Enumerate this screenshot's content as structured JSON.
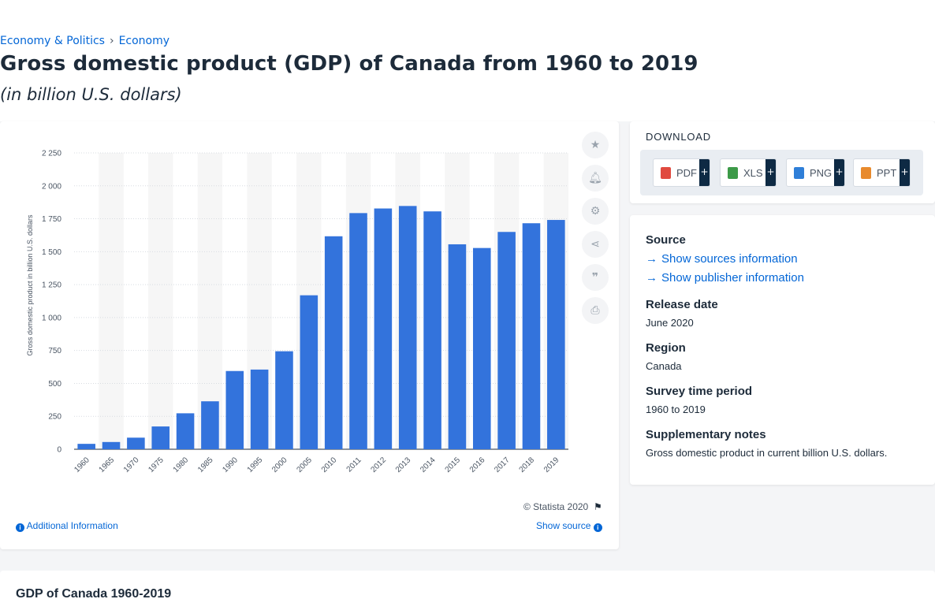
{
  "breadcrumb": {
    "item1": "Economy & Politics",
    "separator": "›",
    "item2": "Economy"
  },
  "title": "Gross domestic product (GDP) of Canada from 1960 to 2019",
  "subtitle": "(in billion U.S. dollars)",
  "chart_footer": {
    "copyright": "© Statista 2020",
    "additional_info": "Additional Information",
    "show_source": "Show source"
  },
  "tools": [
    "star-icon",
    "bell-icon",
    "gear-icon",
    "share-icon",
    "quote-icon",
    "print-icon"
  ],
  "download": {
    "title": "DOWNLOAD",
    "buttons": [
      {
        "label": "PDF",
        "icon": "pdf-icon",
        "color": "#e04a3f"
      },
      {
        "label": "XLS",
        "icon": "xls-icon",
        "color": "#3c9a48"
      },
      {
        "label": "PNG",
        "icon": "png-icon",
        "color": "#2f7fd8"
      },
      {
        "label": "PPT",
        "icon": "ppt-icon",
        "color": "#e88a2d"
      }
    ],
    "plus": "+"
  },
  "meta": {
    "source_heading": "Source",
    "show_sources": "Show sources information",
    "show_publisher": "Show publisher information",
    "release_heading": "Release date",
    "release_value": "June 2020",
    "region_heading": "Region",
    "region_value": "Canada",
    "survey_heading": "Survey time period",
    "survey_value": "1960 to 2019",
    "notes_heading": "Supplementary notes",
    "notes_value": "Gross domestic product in current billion U.S. dollars."
  },
  "bottom": {
    "title": "GDP of Canada 1960-2019"
  },
  "colors": {
    "bar": "#3373dc",
    "link": "#0366d6",
    "band": "#f6f6f6"
  },
  "chart_data": {
    "type": "bar",
    "ylabel": "Gross domestic product in billion U.S. dollars",
    "ylim": [
      0,
      2250
    ],
    "yticks": [
      0,
      250,
      500,
      750,
      1000,
      1250,
      1500,
      1750,
      2000,
      2250
    ],
    "ytick_labels": [
      "0",
      "250",
      "500",
      "750",
      "1 000",
      "1 250",
      "1 500",
      "1 750",
      "2 000",
      "2 250"
    ],
    "categories": [
      "1960",
      "1965",
      "1970",
      "1975",
      "1980",
      "1985",
      "1990",
      "1995",
      "2000",
      "2005",
      "2010",
      "2011",
      "2012",
      "2013",
      "2014",
      "2015",
      "2016",
      "2017",
      "2018",
      "2019"
    ],
    "values": [
      41,
      55,
      88,
      173,
      273,
      364,
      594,
      605,
      744,
      1169,
      1617,
      1793,
      1828,
      1847,
      1806,
      1556,
      1528,
      1650,
      1716,
      1741
    ],
    "grid": true,
    "legend": "none"
  }
}
